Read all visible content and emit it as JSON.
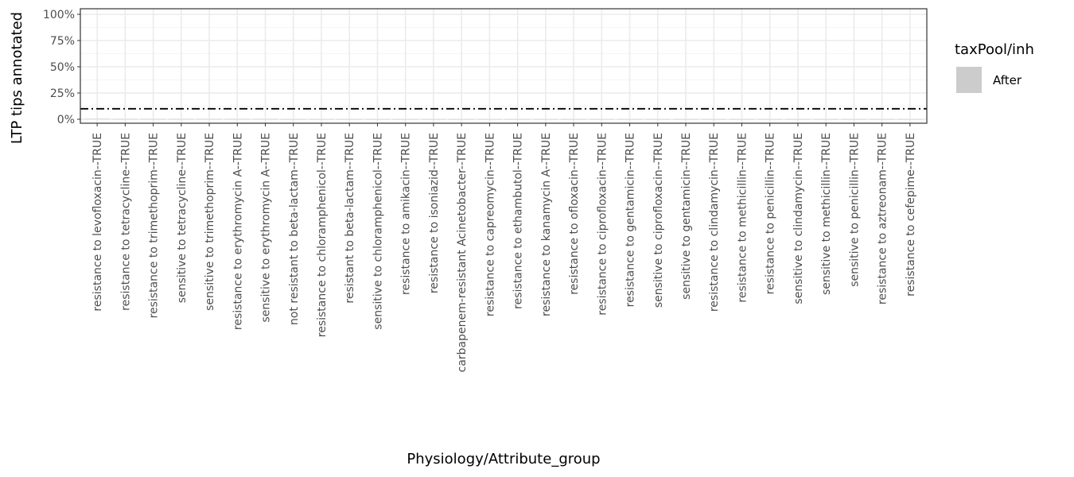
{
  "chart_data": {
    "type": "bar",
    "title": "",
    "xlabel": "Physiology/Attribute_group",
    "ylabel": "LTP tips annotated",
    "ylim": [
      0,
      1
    ],
    "y_ticks": [
      "0%",
      "25%",
      "50%",
      "75%",
      "100%"
    ],
    "y_tick_values": [
      0,
      0.25,
      0.5,
      0.75,
      1
    ],
    "grid": true,
    "threshold_line": {
      "value": 0.1,
      "style": "dash-dot",
      "color": "#000000"
    },
    "legend": {
      "title": "taxPool/inh",
      "position": "right",
      "entries": [
        {
          "label": "After",
          "color": "#cccccc"
        }
      ]
    },
    "categories": [
      "resistance to levofloxacin--TRUE",
      "resistance to tetracycline--TRUE",
      "resistance to trimethoprim--TRUE",
      "sensitive to tetracycline--TRUE",
      "sensitive to trimethoprim--TRUE",
      "resistance to erythromycin A--TRUE",
      "sensitive to erythromycin A--TRUE",
      "not resistant to beta-lactam--TRUE",
      "resistance to chloramphenicol--TRUE",
      "resistant to beta-lactam--TRUE",
      "sensitive to chloramphenicol--TRUE",
      "resistance to amikacin--TRUE",
      "resistance to isoniazid--TRUE",
      "carbapenem-resistant Acinetobacter--TRUE",
      "resistance to capreomycin--TRUE",
      "resistance to ethambutol--TRUE",
      "resistance to kanamycin A--TRUE",
      "resistance to ofloxacin--TRUE",
      "resistance to ciprofloxacin--TRUE",
      "resistance to gentamicin--TRUE",
      "sensitive to ciprofloxacin--TRUE",
      "sensitive to gentamicin--TRUE",
      "resistance to clindamycin--TRUE",
      "resistance to methicillin--TRUE",
      "resistance to penicillin--TRUE",
      "sensitive to clindamycin--TRUE",
      "sensitive to methicillin--TRUE",
      "sensitive to penicillin--TRUE",
      "resistance to aztreonam--TRUE",
      "resistance to cefepime--TRUE"
    ],
    "series": [
      {
        "name": "After",
        "color": "#cccccc",
        "values": [
          0.004,
          0.002,
          0.002,
          0.002,
          0.002,
          0.002,
          0.002,
          0.001,
          0.001,
          0.001,
          0.001,
          0.001,
          0.001,
          0.001,
          0.001,
          0.001,
          0.001,
          0.001,
          0.001,
          0.001,
          0.001,
          0.001,
          0.001,
          0.001,
          0.001,
          0.001,
          0.001,
          0.001,
          0.001,
          0.001
        ]
      }
    ]
  }
}
